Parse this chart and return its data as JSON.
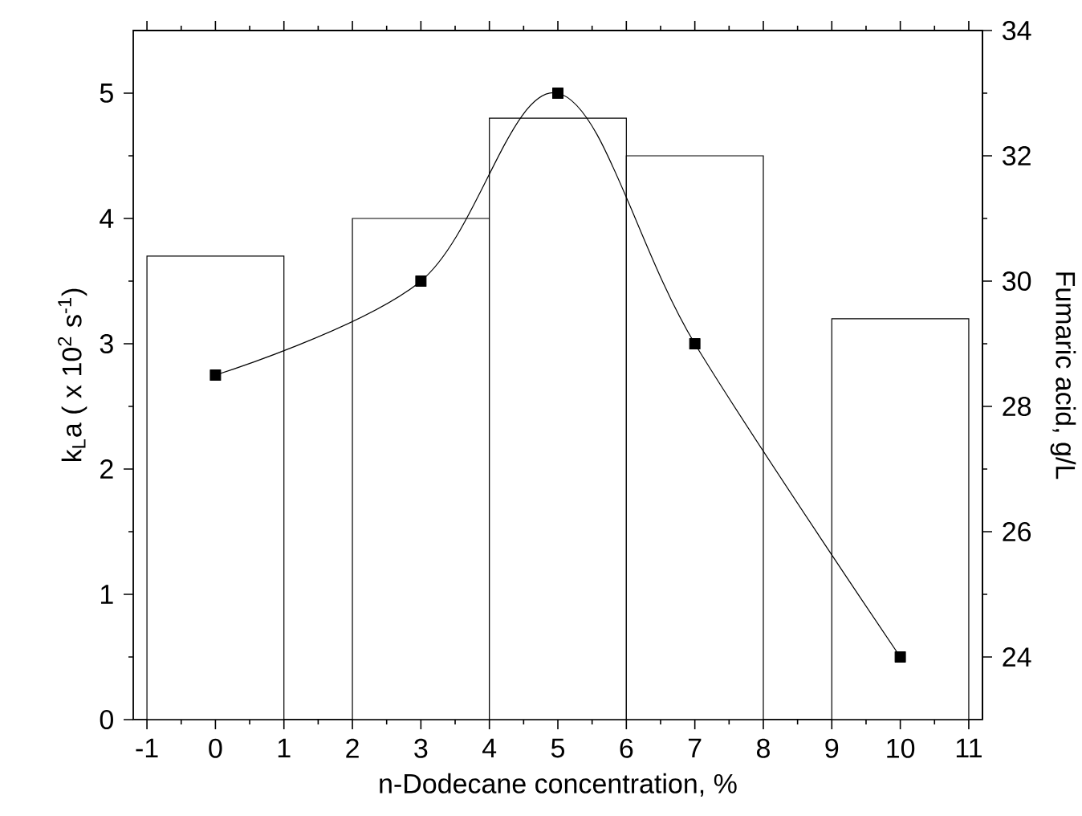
{
  "chart_data": {
    "type": "bar",
    "xlabel": "n-Dodecane concentration, %",
    "ylabel": "k$_{L}$a ( x 10$^{2}$ s$^{-1}$)",
    "y2label": "Fumaric acid, g/L",
    "x": [
      0,
      3,
      5,
      7,
      10
    ],
    "series": [
      {
        "color": "#000000",
        "values": [
          3.7,
          4.0,
          4.8,
          4.5,
          3.2
        ]
      },
      {
        "type": "line",
        "axis": "y2",
        "color": "#000000",
        "values": [
          28.5,
          30,
          33,
          29,
          24
        ]
      }
    ],
    "marker": "square",
    "xlim": [
      -1.2,
      11.2
    ],
    "xticks": [
      -1,
      0,
      1,
      2,
      3,
      4,
      5,
      6,
      7,
      8,
      9,
      10,
      11
    ],
    "ylim": [
      0,
      5.5
    ],
    "yticks": [
      0,
      1,
      2,
      3,
      4,
      5
    ],
    "y2lim": [
      23,
      34
    ],
    "y2ticks": [
      24,
      26,
      28,
      30,
      32,
      34
    ]
  }
}
